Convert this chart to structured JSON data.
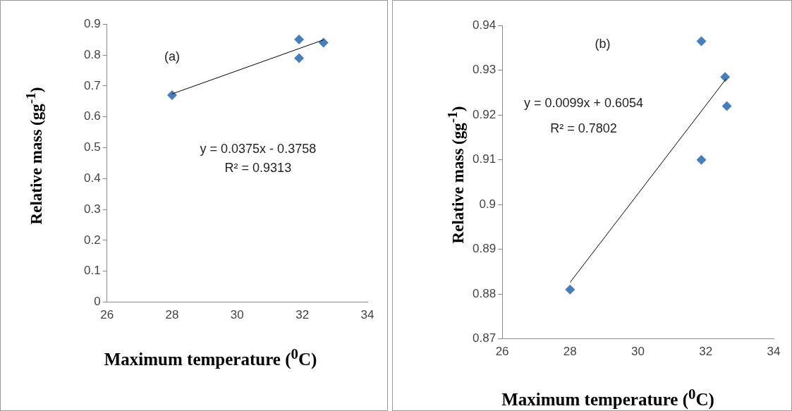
{
  "chart_data": [
    {
      "type": "scatter",
      "xlabel": "Maximum temperature ($^{0}$C)",
      "ylabel": "Relative mass (gg$^{-1}$)",
      "annotations": [
        "(a)",
        "y = 0.0375x - 0.3758",
        "R² = 0.9313"
      ],
      "xlim": [
        26,
        34
      ],
      "xticks": [
        26,
        28,
        30,
        32,
        34
      ],
      "ylim": [
        0,
        0.9
      ],
      "yticks": [
        0,
        0.1,
        0.2,
        0.3,
        0.4,
        0.5,
        0.6,
        0.7,
        0.8,
        0.9
      ],
      "grid": false,
      "legend": false,
      "series": [
        {
          "type": "scatter",
          "color": "#4a7ebb",
          "marker": "diamond",
          "x": [
            28,
            31.9,
            31.9,
            32.65
          ],
          "values": [
            0.67,
            0.85,
            0.79,
            0.84
          ]
        },
        {
          "type": "line",
          "color": "#000000",
          "marker": "none",
          "x": [
            28,
            32.65
          ],
          "values": [
            0.674,
            0.849
          ]
        }
      ]
    },
    {
      "type": "scatter",
      "xlabel": "Maximum temperature ($^{0}$C)",
      "ylabel": "Relative mass (gg$^{-1}$)",
      "annotations": [
        "(b)",
        "y = 0.0099x + 0.6054",
        "R² = 0.7802"
      ],
      "xlim": [
        26,
        34
      ],
      "xticks": [
        26,
        28,
        30,
        32,
        34
      ],
      "ylim": [
        0.87,
        0.94
      ],
      "yticks": [
        0.87,
        0.88,
        0.89,
        0.9,
        0.91,
        0.92,
        0.93,
        0.94
      ],
      "grid": false,
      "legend": false,
      "series": [
        {
          "type": "scatter",
          "color": "#4a7ebb",
          "marker": "diamond",
          "x": [
            28,
            31.87,
            31.87,
            32.57,
            32.62
          ],
          "values": [
            0.881,
            0.9365,
            0.91,
            0.9285,
            0.922
          ]
        },
        {
          "type": "line",
          "color": "#000000",
          "marker": "none",
          "x": [
            28,
            32.6
          ],
          "values": [
            0.8826,
            0.9281
          ]
        }
      ]
    }
  ]
}
